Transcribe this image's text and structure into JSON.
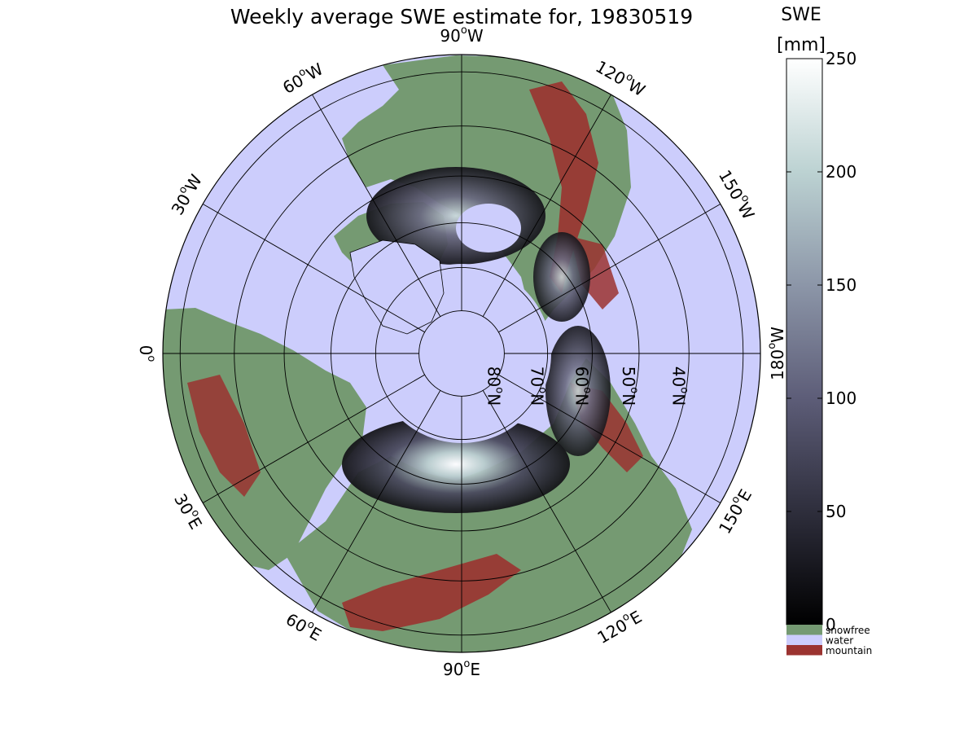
{
  "title": "Weekly average SWE estimate for, 19830519",
  "map": {
    "projection": "north polar stereographic",
    "colors": {
      "water": "#cccdfc",
      "snowfree": "#759a72",
      "mountain": "#9b3330",
      "grid": "#000000"
    },
    "longitude_labels": [
      {
        "text": "90",
        "suffix": "W",
        "lon": -90
      },
      {
        "text": "120",
        "suffix": "W",
        "lon": -120
      },
      {
        "text": "150",
        "suffix": "W",
        "lon": -150
      },
      {
        "text": "180",
        "suffix": "W",
        "lon": 180
      },
      {
        "text": "150",
        "suffix": "E",
        "lon": 150
      },
      {
        "text": "120",
        "suffix": "E",
        "lon": 120
      },
      {
        "text": "90",
        "suffix": "E",
        "lon": 90
      },
      {
        "text": "60",
        "suffix": "E",
        "lon": 60
      },
      {
        "text": "30",
        "suffix": "E",
        "lon": 30
      },
      {
        "text": "0",
        "suffix": "",
        "lon": 0
      },
      {
        "text": "30",
        "suffix": "W",
        "lon": -30
      },
      {
        "text": "60",
        "suffix": "W",
        "lon": -60
      }
    ],
    "latitude_labels": [
      {
        "text": "80",
        "suffix": "N",
        "lat": 80
      },
      {
        "text": "70",
        "suffix": "N",
        "lat": 70
      },
      {
        "text": "60",
        "suffix": "N",
        "lat": 60
      },
      {
        "text": "50",
        "suffix": "N",
        "lat": 50
      },
      {
        "text": "40",
        "suffix": "N",
        "lat": 40
      }
    ],
    "latitude_circles": [
      80,
      70,
      60,
      50,
      40,
      30
    ]
  },
  "colorbar": {
    "title_line1": "SWE",
    "title_line2": "[mm]",
    "range": [
      0,
      250
    ],
    "ticks": [
      0,
      50,
      100,
      150,
      200,
      250
    ],
    "gradient_colors": [
      "#000000",
      "#2e2e3c",
      "#5d5d78",
      "#8c96a8",
      "#bcd2d2",
      "#ffffff"
    ],
    "legend": [
      {
        "label": "snowfree",
        "color": "#759a72"
      },
      {
        "label": "water",
        "color": "#cccdfc"
      },
      {
        "label": "mountain",
        "color": "#9b3330"
      }
    ]
  }
}
